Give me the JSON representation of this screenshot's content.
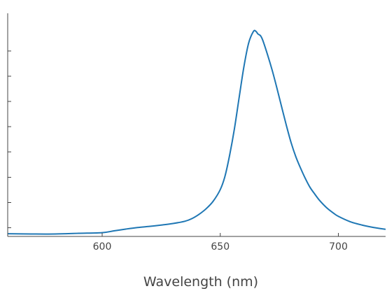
{
  "chart_data": {
    "type": "line",
    "xlabel": "Wavelength (nm)",
    "ylabel": "",
    "xlim": [
      560,
      720
    ],
    "ylim": [
      0,
      1
    ],
    "x_ticks": [
      600,
      650,
      700
    ],
    "x_tick_labels": [
      "600",
      "650",
      "700"
    ],
    "y_ticks": [
      0.039,
      0.152,
      0.265,
      0.379,
      0.492,
      0.605,
      0.718,
      0.831
    ],
    "y_tick_labels": [
      "",
      "",
      "",
      "",
      "",
      "",
      "",
      ""
    ],
    "grid": false,
    "legend": "none",
    "series": [
      {
        "color": "#1f77b4",
        "x": [
          560,
          570,
          580,
          590,
          600,
          605,
          610,
          615,
          620,
          625,
          630,
          635,
          638,
          641,
          644,
          647,
          650,
          652,
          654,
          656,
          658,
          660,
          662,
          664,
          665,
          666,
          667,
          668,
          670,
          672,
          674,
          676,
          678,
          680,
          682,
          684,
          686,
          688,
          690,
          692,
          695,
          698,
          700,
          705,
          710,
          715,
          720
        ],
        "y": [
          0.012,
          0.011,
          0.011,
          0.014,
          0.017,
          0.025,
          0.033,
          0.04,
          0.045,
          0.051,
          0.058,
          0.068,
          0.08,
          0.099,
          0.124,
          0.158,
          0.21,
          0.27,
          0.366,
          0.483,
          0.623,
          0.76,
          0.866,
          0.918,
          0.92,
          0.907,
          0.9,
          0.879,
          0.815,
          0.744,
          0.664,
          0.58,
          0.497,
          0.42,
          0.357,
          0.306,
          0.26,
          0.22,
          0.19,
          0.162,
          0.129,
          0.104,
          0.09,
          0.066,
          0.051,
          0.04,
          0.032
        ]
      }
    ]
  }
}
